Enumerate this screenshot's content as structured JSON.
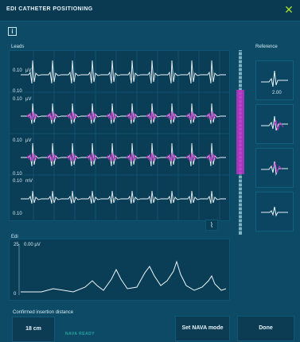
{
  "window": {
    "title": "EDI CATHETER POSITIONING",
    "close_glyph": "✕"
  },
  "info_glyph": "i",
  "leads": {
    "label": "Leads",
    "rows": [
      {
        "scale": "0.10",
        "unit": "µV",
        "scale_bottom": "0.10"
      },
      {
        "scale": "0.10",
        "unit": "µV",
        "scale_bottom": ""
      },
      {
        "scale": "0.10",
        "unit": "µV",
        "scale_bottom": "0.10"
      },
      {
        "scale": "0.10",
        "unit": "mV",
        "scale_bottom": "0.10"
      }
    ],
    "highlight_color": "#c030c8"
  },
  "reference": {
    "label": "Reference",
    "value": "2.00"
  },
  "edi": {
    "label": "Edi",
    "scale_top": "25",
    "value": "0.00 µV",
    "scale_bottom": "0"
  },
  "confirmed": {
    "label": "Confirmed insertion distance",
    "value": "18 cm",
    "status": "NAVA READY"
  },
  "buttons": {
    "set_nava": "Set NAVA mode",
    "done": "Done"
  },
  "colors": {
    "background": "#0c4a66",
    "accent_close": "#a8e02a",
    "status": "#22a59e"
  }
}
